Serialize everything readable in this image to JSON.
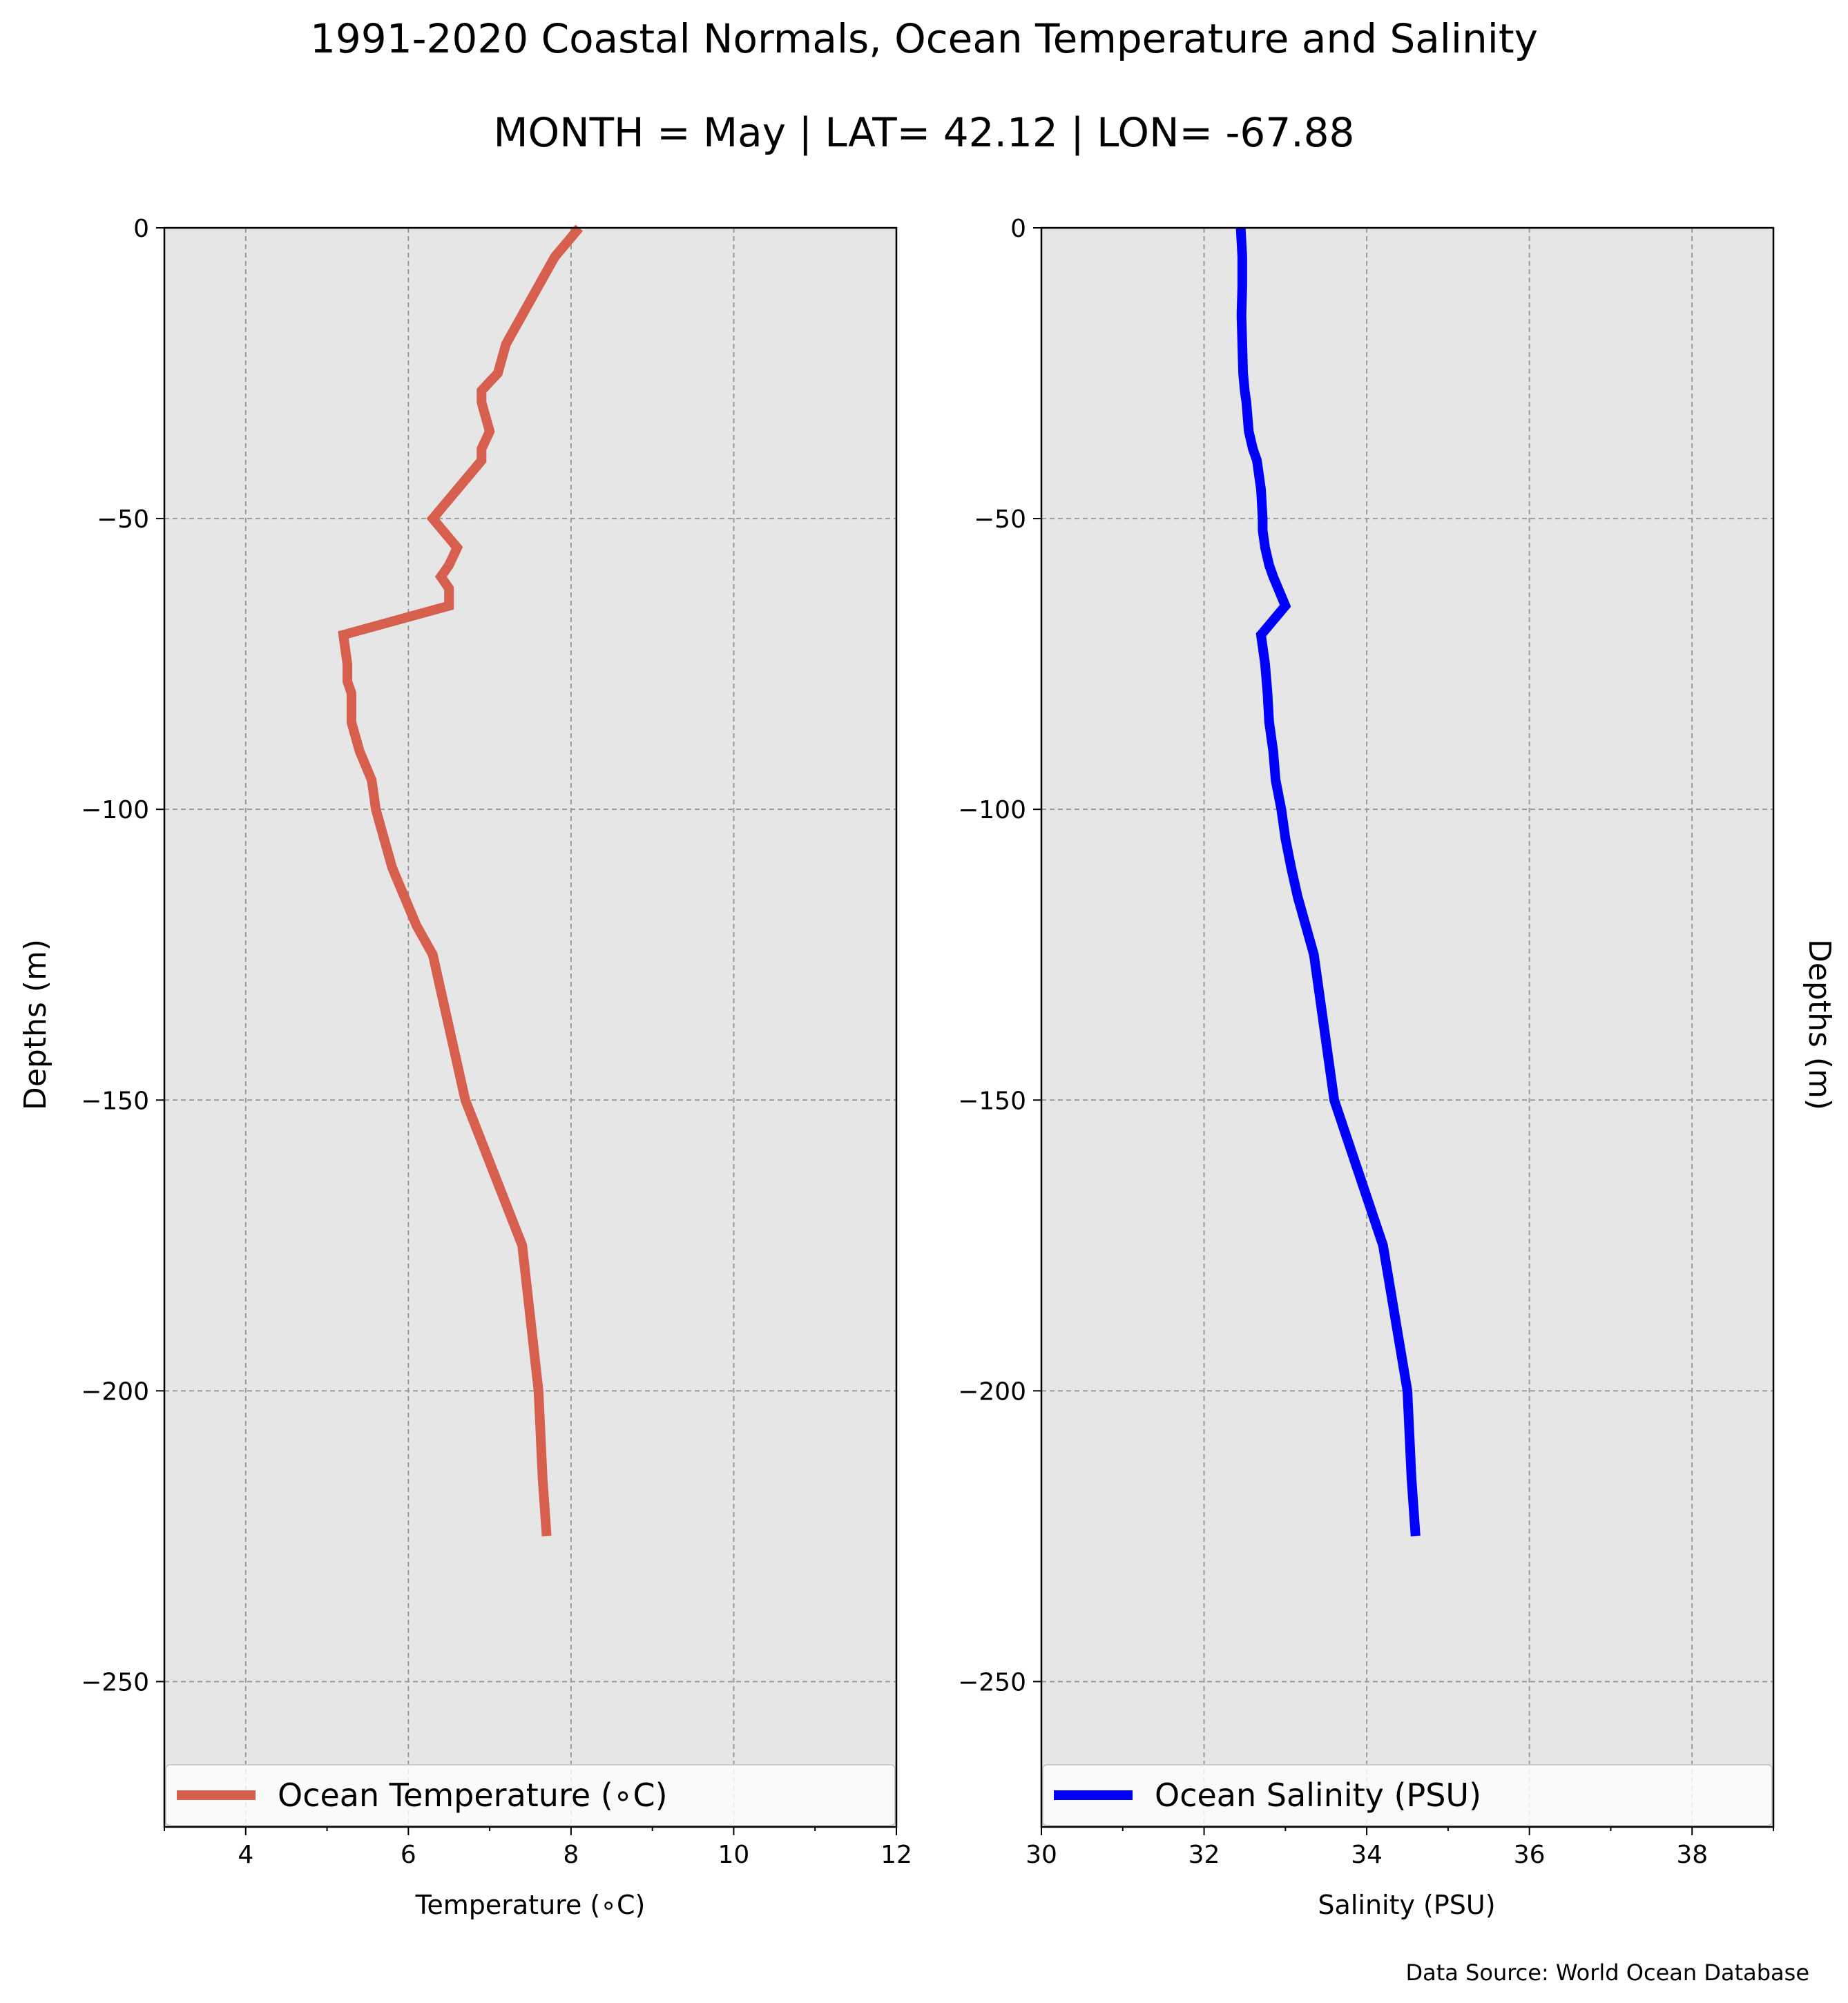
{
  "figure": {
    "title": "1991-2020 Coastal Normals, Ocean Temperature and Salinity",
    "subtitle": "MONTH = May | LAT= 42.12 | LON= -67.88",
    "source_note": "Data Source: World Ocean Database"
  },
  "chart_data": [
    {
      "type": "line",
      "orientation": "vertical-profile",
      "xlabel": "Temperature (∘C)",
      "ylabel": "Depths (m)",
      "xlim": [
        3,
        12
      ],
      "ylim": [
        -275,
        0
      ],
      "xticks": [
        4,
        6,
        8,
        10,
        12
      ],
      "yticks": [
        0,
        -50,
        -100,
        -150,
        -200,
        -250
      ],
      "grid": true,
      "legend_position": "bottom",
      "series": [
        {
          "name": "Ocean Temperature (∘C)",
          "color": "#d65f4e",
          "x": [
            8.1,
            7.8,
            7.4,
            7.2,
            7.1,
            6.9,
            6.9,
            7.0,
            6.9,
            6.9,
            6.6,
            6.3,
            6.6,
            6.5,
            6.4,
            6.5,
            6.5,
            5.2,
            5.25,
            5.25,
            5.3,
            5.3,
            5.4,
            5.55,
            5.6,
            5.7,
            5.8,
            5.95,
            6.1,
            6.3,
            6.7,
            7.4,
            7.6,
            7.65,
            7.7
          ],
          "y": [
            0,
            -5,
            -15,
            -20,
            -25,
            -28,
            -30,
            -35,
            -38,
            -40,
            -45,
            -50,
            -55,
            -58,
            -60,
            -62,
            -65,
            -70,
            -75,
            -78,
            -80,
            -85,
            -90,
            -95,
            -100,
            -105,
            -110,
            -115,
            -120,
            -125,
            -150,
            -175,
            -200,
            -215,
            -225
          ]
        }
      ]
    },
    {
      "type": "line",
      "orientation": "vertical-profile",
      "xlabel": "Salinity (PSU)",
      "ylabel": "Depths (m)",
      "xlim": [
        30,
        39
      ],
      "ylim": [
        -275,
        0
      ],
      "xticks": [
        30,
        32,
        34,
        36,
        38
      ],
      "yticks": [
        0,
        -50,
        -100,
        -150,
        -200,
        -250
      ],
      "grid": true,
      "legend_position": "bottom",
      "series": [
        {
          "name": "Ocean Salinity (PSU)",
          "color": "#0000ff",
          "x": [
            32.45,
            32.47,
            32.47,
            32.46,
            32.47,
            32.48,
            32.5,
            32.52,
            32.55,
            32.6,
            32.65,
            32.7,
            32.72,
            32.72,
            32.75,
            32.8,
            32.85,
            33.0,
            32.7,
            32.75,
            32.78,
            32.8,
            32.85,
            32.88,
            32.95,
            33.0,
            33.07,
            33.15,
            33.25,
            33.35,
            33.6,
            34.2,
            34.5,
            34.55,
            34.6
          ],
          "y": [
            0,
            -5,
            -10,
            -15,
            -20,
            -25,
            -28,
            -30,
            -35,
            -38,
            -40,
            -45,
            -50,
            -52,
            -55,
            -58,
            -60,
            -65,
            -70,
            -75,
            -80,
            -85,
            -90,
            -95,
            -100,
            -105,
            -110,
            -115,
            -120,
            -125,
            -150,
            -175,
            -200,
            -215,
            -225
          ]
        }
      ]
    }
  ]
}
